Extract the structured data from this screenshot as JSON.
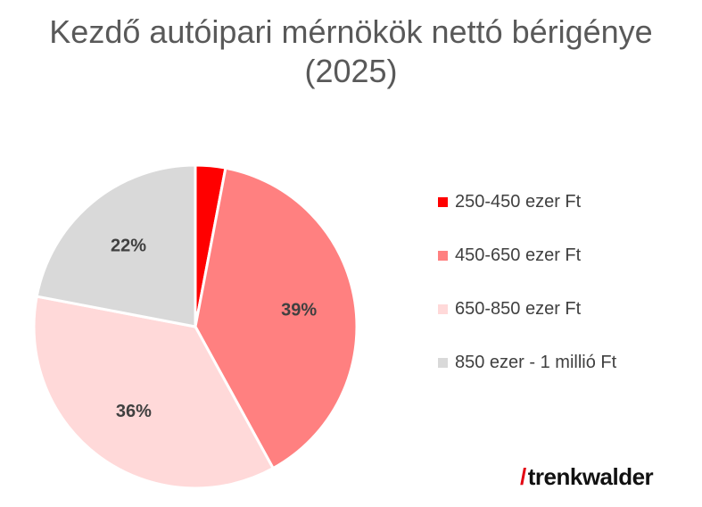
{
  "chart_data": {
    "type": "pie",
    "title": "Kezdő autóipari mérnökök nettó bérigénye",
    "subtitle": "(2025)",
    "categories": [
      "250-450 ezer Ft",
      "450-650 ezer Ft",
      "650-850 ezer Ft",
      "850 ezer - 1 millió Ft"
    ],
    "values": [
      3,
      39,
      36,
      22
    ],
    "data_labels": [
      "",
      "39%",
      "36%",
      "22%"
    ],
    "colors": [
      "#ff0000",
      "#ff8080",
      "#ffd9d9",
      "#d9d9d9"
    ],
    "legend_position": "right",
    "start_angle": "12 o'clock",
    "direction": "clockwise"
  },
  "branding": {
    "logo_slash": "/",
    "logo_text": "trenkwalder",
    "accent_color": "#e30613"
  }
}
